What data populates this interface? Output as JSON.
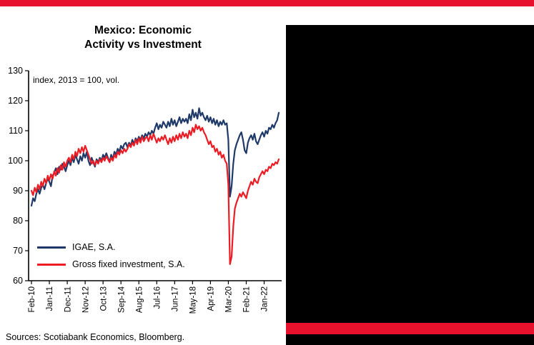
{
  "colors": {
    "banner_red": "#e8112d",
    "igae_blue": "#1f3a68",
    "investment_red": "#ed1c24",
    "panel_black": "#000000",
    "axis_black": "#000000"
  },
  "chart_data": {
    "type": "line",
    "title": "Mexico: Economic Activity vs Investment",
    "title_lines": [
      "Mexico: Economic",
      "Activity vs Investment"
    ],
    "subtitle": "index, 2013 = 100, vol.",
    "ylim": [
      60,
      130
    ],
    "yticks": [
      60,
      70,
      80,
      90,
      100,
      110,
      120,
      130
    ],
    "x_frequency": "monthly",
    "x_range": "Feb-2010 to Oct-2022",
    "xtick_labels": [
      "Feb-10",
      "Jan-11",
      "Dec-11",
      "Nov-12",
      "Oct-13",
      "Sep-14",
      "Aug-15",
      "Jul-16",
      "Jun-17",
      "May-18",
      "Apr-19",
      "Mar-20",
      "Feb-21",
      "Jan-22"
    ],
    "xtick_indices": [
      0,
      11,
      22,
      33,
      44,
      55,
      66,
      77,
      88,
      99,
      110,
      121,
      132,
      143
    ],
    "grid": false,
    "legend_position": "bottom-left",
    "series": [
      {
        "name": "IGAE, S.A.",
        "color": "#1f3a68",
        "values": [
          85.0,
          87.5,
          86.5,
          89.0,
          90.5,
          89.0,
          91.0,
          92.0,
          90.5,
          92.5,
          94.0,
          93.0,
          91.5,
          95.0,
          96.0,
          97.5,
          95.5,
          98.0,
          97.0,
          99.0,
          98.0,
          96.5,
          98.5,
          100.0,
          98.5,
          101.0,
          99.5,
          102.0,
          100.5,
          99.0,
          101.5,
          100.0,
          102.5,
          101.0,
          103.0,
          100.0,
          98.5,
          101.0,
          99.5,
          98.0,
          100.5,
          99.5,
          101.0,
          100.0,
          102.0,
          101.0,
          102.5,
          101.0,
          99.5,
          102.0,
          100.5,
          103.0,
          102.0,
          104.0,
          103.0,
          105.0,
          104.0,
          105.5,
          106.0,
          104.5,
          106.0,
          105.0,
          107.0,
          105.5,
          107.5,
          106.5,
          108.0,
          107.0,
          108.5,
          107.5,
          109.0,
          108.0,
          109.5,
          108.5,
          110.0,
          109.0,
          111.0,
          112.5,
          110.5,
          112.0,
          111.0,
          113.0,
          112.0,
          111.0,
          113.0,
          111.5,
          114.0,
          112.0,
          113.5,
          111.5,
          113.0,
          114.5,
          112.5,
          114.0,
          113.0,
          114.0,
          112.5,
          115.5,
          113.5,
          117.0,
          114.5,
          116.0,
          114.0,
          117.5,
          115.0,
          116.0,
          114.5,
          113.5,
          115.0,
          113.0,
          114.5,
          112.5,
          114.0,
          112.0,
          113.5,
          111.5,
          113.0,
          112.0,
          113.5,
          112.0,
          112.5,
          107.0,
          88.0,
          91.5,
          99.0,
          103.5,
          105.5,
          107.0,
          108.5,
          109.5,
          107.0,
          103.5,
          102.5,
          106.0,
          107.5,
          108.5,
          107.0,
          109.0,
          106.5,
          105.5,
          107.0,
          108.5,
          109.5,
          108.0,
          110.0,
          109.0,
          111.0,
          110.5,
          112.0,
          111.0,
          112.5,
          113.5,
          116.0
        ]
      },
      {
        "name": "Gross fixed investment, S.A.",
        "color": "#ed1c24",
        "values": [
          90.0,
          88.5,
          91.0,
          89.5,
          92.0,
          90.5,
          93.0,
          91.5,
          94.0,
          92.5,
          95.0,
          93.5,
          95.5,
          94.0,
          96.5,
          95.0,
          97.5,
          96.0,
          98.5,
          97.0,
          99.5,
          98.0,
          100.0,
          101.0,
          99.5,
          102.0,
          100.5,
          103.0,
          101.5,
          104.0,
          102.5,
          104.5,
          103.0,
          105.0,
          103.5,
          102.0,
          100.5,
          99.0,
          100.0,
          98.5,
          100.0,
          99.0,
          100.5,
          99.5,
          101.0,
          100.0,
          101.5,
          100.5,
          99.5,
          101.0,
          100.0,
          102.0,
          101.0,
          103.0,
          102.0,
          103.5,
          102.5,
          104.0,
          103.0,
          104.0,
          105.5,
          104.5,
          106.0,
          105.0,
          107.0,
          105.5,
          107.5,
          106.0,
          108.0,
          106.5,
          107.5,
          108.0,
          106.5,
          108.5,
          107.0,
          109.0,
          107.5,
          106.0,
          107.5,
          106.5,
          108.0,
          107.0,
          108.5,
          107.0,
          105.5,
          107.5,
          106.0,
          108.0,
          106.5,
          108.5,
          107.0,
          109.0,
          107.5,
          109.5,
          108.0,
          109.0,
          107.5,
          110.0,
          108.5,
          111.0,
          109.5,
          112.0,
          110.5,
          111.5,
          110.0,
          111.0,
          109.5,
          108.5,
          107.0,
          105.5,
          106.5,
          104.5,
          105.0,
          103.0,
          104.0,
          102.0,
          103.0,
          101.0,
          102.0,
          100.0,
          99.0,
          92.0,
          65.5,
          68.0,
          78.0,
          84.0,
          86.0,
          87.5,
          89.0,
          88.0,
          89.5,
          88.5,
          87.5,
          90.0,
          91.5,
          93.0,
          92.0,
          94.0,
          93.0,
          92.5,
          94.5,
          95.5,
          96.5,
          95.5,
          97.0,
          96.5,
          98.0,
          97.5,
          99.0,
          98.5,
          99.5,
          99.0,
          100.5
        ]
      }
    ]
  },
  "footer": {
    "sources": "Sources: Scotiabank Economics, Bloomberg."
  }
}
